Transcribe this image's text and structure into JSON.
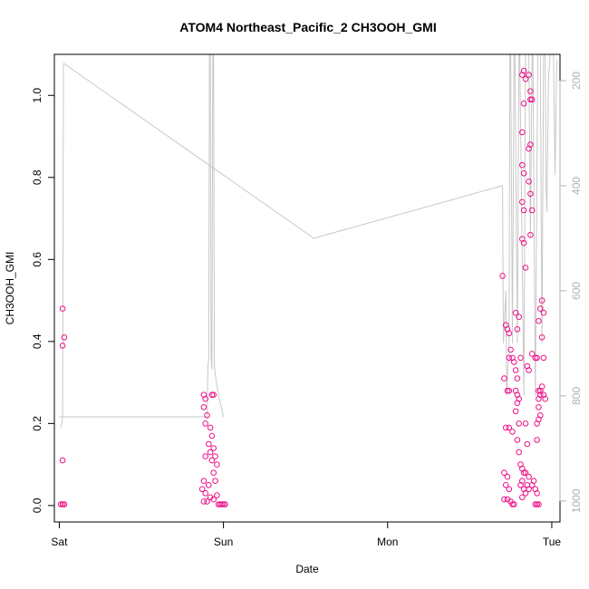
{
  "chart_data": {
    "type": "scatter",
    "title": "ATOM4 Northeast_Pacific_2 CH3OOH_GMI",
    "xlabel": "Date",
    "ylabel": "CH3OOH_GMI",
    "x_ticks": [
      "Sat",
      "Sun",
      "Mon",
      "Tue"
    ],
    "y_ticks": [
      "0.0",
      "0.2",
      "0.4",
      "0.6",
      "0.8",
      "1.0"
    ],
    "y2_ticks": [
      "200",
      "400",
      "600",
      "800",
      "1000"
    ],
    "ylim": [
      -0.04,
      1.1
    ],
    "y2lim": [
      1040,
      150
    ],
    "xlim": [
      -0.03,
      3.05
    ],
    "points": [
      [
        0.02,
        0.48
      ],
      [
        0.03,
        0.41
      ],
      [
        0.02,
        0.39
      ],
      [
        0.02,
        0.11
      ],
      [
        0.01,
        0.003
      ],
      [
        0.02,
        0.003
      ],
      [
        0.03,
        0.003
      ],
      [
        0.88,
        0.27
      ],
      [
        0.89,
        0.26
      ],
      [
        0.88,
        0.24
      ],
      [
        0.9,
        0.22
      ],
      [
        0.89,
        0.2
      ],
      [
        0.92,
        0.19
      ],
      [
        0.93,
        0.17
      ],
      [
        0.91,
        0.15
      ],
      [
        0.94,
        0.14
      ],
      [
        0.92,
        0.13
      ],
      [
        0.95,
        0.12
      ],
      [
        0.93,
        0.11
      ],
      [
        0.96,
        0.1
      ],
      [
        0.89,
        0.12
      ],
      [
        0.94,
        0.08
      ],
      [
        0.88,
        0.06
      ],
      [
        0.91,
        0.05
      ],
      [
        0.95,
        0.06
      ],
      [
        0.87,
        0.04
      ],
      [
        0.89,
        0.03
      ],
      [
        0.92,
        0.02
      ],
      [
        0.94,
        0.015
      ],
      [
        0.96,
        0.025
      ],
      [
        0.88,
        0.01
      ],
      [
        0.9,
        0.01
      ],
      [
        0.93,
        0.27
      ],
      [
        0.94,
        0.27
      ],
      [
        0.97,
        0.003
      ],
      [
        0.98,
        0.003
      ],
      [
        0.99,
        0.003
      ],
      [
        1.0,
        0.003
      ],
      [
        1.01,
        0.003
      ],
      [
        2.7,
        0.56
      ],
      [
        2.72,
        0.44
      ],
      [
        2.73,
        0.43
      ],
      [
        2.74,
        0.42
      ],
      [
        2.71,
        0.31
      ],
      [
        2.73,
        0.28
      ],
      [
        2.74,
        0.28
      ],
      [
        2.72,
        0.19
      ],
      [
        2.74,
        0.19
      ],
      [
        2.76,
        0.18
      ],
      [
        2.71,
        0.08
      ],
      [
        2.73,
        0.07
      ],
      [
        2.72,
        0.05
      ],
      [
        2.74,
        0.04
      ],
      [
        2.71,
        0.015
      ],
      [
        2.73,
        0.015
      ],
      [
        2.75,
        0.01
      ],
      [
        2.76,
        0.003
      ],
      [
        2.77,
        0.003
      ],
      [
        2.75,
        0.38
      ],
      [
        2.76,
        0.36
      ],
      [
        2.74,
        0.36
      ],
      [
        2.77,
        0.35
      ],
      [
        2.78,
        0.33
      ],
      [
        2.79,
        0.31
      ],
      [
        2.78,
        0.28
      ],
      [
        2.79,
        0.27
      ],
      [
        2.8,
        0.26
      ],
      [
        2.79,
        0.25
      ],
      [
        2.78,
        0.23
      ],
      [
        2.8,
        0.2
      ],
      [
        2.79,
        0.16
      ],
      [
        2.8,
        0.13
      ],
      [
        2.81,
        0.1
      ],
      [
        2.82,
        0.09
      ],
      [
        2.83,
        0.08
      ],
      [
        2.84,
        0.08
      ],
      [
        2.82,
        0.06
      ],
      [
        2.81,
        0.05
      ],
      [
        2.83,
        0.04
      ],
      [
        2.84,
        0.03
      ],
      [
        2.82,
        0.02
      ],
      [
        2.78,
        0.47
      ],
      [
        2.8,
        0.46
      ],
      [
        2.79,
        0.43
      ],
      [
        2.81,
        0.36
      ],
      [
        2.82,
        0.91
      ],
      [
        2.83,
        0.98
      ],
      [
        2.82,
        1.05
      ],
      [
        2.83,
        1.06
      ],
      [
        2.84,
        1.04
      ],
      [
        2.82,
        0.83
      ],
      [
        2.83,
        0.81
      ],
      [
        2.82,
        0.74
      ],
      [
        2.83,
        0.72
      ],
      [
        2.82,
        0.65
      ],
      [
        2.83,
        0.64
      ],
      [
        2.84,
        0.58
      ],
      [
        2.86,
        1.05
      ],
      [
        2.87,
        1.01
      ],
      [
        2.88,
        0.99
      ],
      [
        2.87,
        0.99
      ],
      [
        2.86,
        0.87
      ],
      [
        2.87,
        0.88
      ],
      [
        2.86,
        0.79
      ],
      [
        2.87,
        0.76
      ],
      [
        2.88,
        0.72
      ],
      [
        2.87,
        0.66
      ],
      [
        2.85,
        0.34
      ],
      [
        2.86,
        0.33
      ],
      [
        2.84,
        0.2
      ],
      [
        2.85,
        0.15
      ],
      [
        2.86,
        0.07
      ],
      [
        2.85,
        0.05
      ],
      [
        2.86,
        0.04
      ],
      [
        2.88,
        0.05
      ],
      [
        2.89,
        0.06
      ],
      [
        2.9,
        0.04
      ],
      [
        2.91,
        0.03
      ],
      [
        2.88,
        0.37
      ],
      [
        2.9,
        0.36
      ],
      [
        2.91,
        0.36
      ],
      [
        2.92,
        0.45
      ],
      [
        2.93,
        0.48
      ],
      [
        2.94,
        0.5
      ],
      [
        2.95,
        0.47
      ],
      [
        2.94,
        0.41
      ],
      [
        2.95,
        0.36
      ],
      [
        2.92,
        0.28
      ],
      [
        2.93,
        0.28
      ],
      [
        2.94,
        0.29
      ],
      [
        2.93,
        0.27
      ],
      [
        2.92,
        0.26
      ],
      [
        2.95,
        0.27
      ],
      [
        2.96,
        0.26
      ],
      [
        2.92,
        0.24
      ],
      [
        2.93,
        0.22
      ],
      [
        2.91,
        0.2
      ],
      [
        2.92,
        0.21
      ],
      [
        2.91,
        0.16
      ],
      [
        2.9,
        0.003
      ],
      [
        2.91,
        0.003
      ],
      [
        2.92,
        0.003
      ]
    ],
    "pressure_line": [
      [
        0.01,
        860
      ],
      [
        0.02,
        840
      ],
      [
        0.025,
        168
      ],
      [
        0.03,
        168
      ],
      [
        1.55,
        500
      ],
      [
        2.7,
        400
      ],
      [
        2.705,
        700
      ],
      [
        2.72,
        600
      ],
      [
        2.725,
        800
      ],
      [
        2.74,
        700
      ],
      [
        2.745,
        150
      ],
      [
        2.75,
        150
      ],
      [
        2.76,
        700
      ],
      [
        2.77,
        150
      ],
      [
        2.775,
        150
      ],
      [
        2.79,
        700
      ],
      [
        2.8,
        150
      ],
      [
        2.805,
        150
      ],
      [
        2.83,
        800
      ],
      [
        2.84,
        150
      ],
      [
        2.86,
        150
      ],
      [
        2.87,
        500
      ],
      [
        2.88,
        150
      ],
      [
        2.885,
        150
      ],
      [
        2.9,
        800
      ],
      [
        2.915,
        150
      ],
      [
        2.93,
        150
      ],
      [
        2.94,
        700
      ],
      [
        2.95,
        150
      ],
      [
        2.96,
        150
      ],
      [
        2.965,
        400
      ],
      [
        2.97,
        450
      ],
      [
        2.98,
        200
      ],
      [
        2.99,
        150
      ],
      [
        3.0,
        150
      ],
      [
        3.01,
        150
      ],
      [
        3.02,
        380
      ],
      [
        3.03,
        160
      ]
    ],
    "pressure_line_sun": [
      [
        0.0,
        840
      ],
      [
        0.9,
        840
      ],
      [
        0.905,
        745
      ],
      [
        0.91,
        730
      ],
      [
        0.915,
        150
      ],
      [
        0.92,
        150
      ],
      [
        0.925,
        725
      ],
      [
        0.93,
        750
      ],
      [
        0.935,
        150
      ],
      [
        0.94,
        150
      ],
      [
        0.945,
        740
      ],
      [
        0.95,
        760
      ],
      [
        0.96,
        780
      ],
      [
        0.97,
        800
      ],
      [
        1.0,
        840
      ]
    ],
    "colors": {
      "points": "#ee1188",
      "pressure": "#c8c8c8",
      "axis": "#000000",
      "y2_axis_text": "#b0b0b0"
    }
  }
}
